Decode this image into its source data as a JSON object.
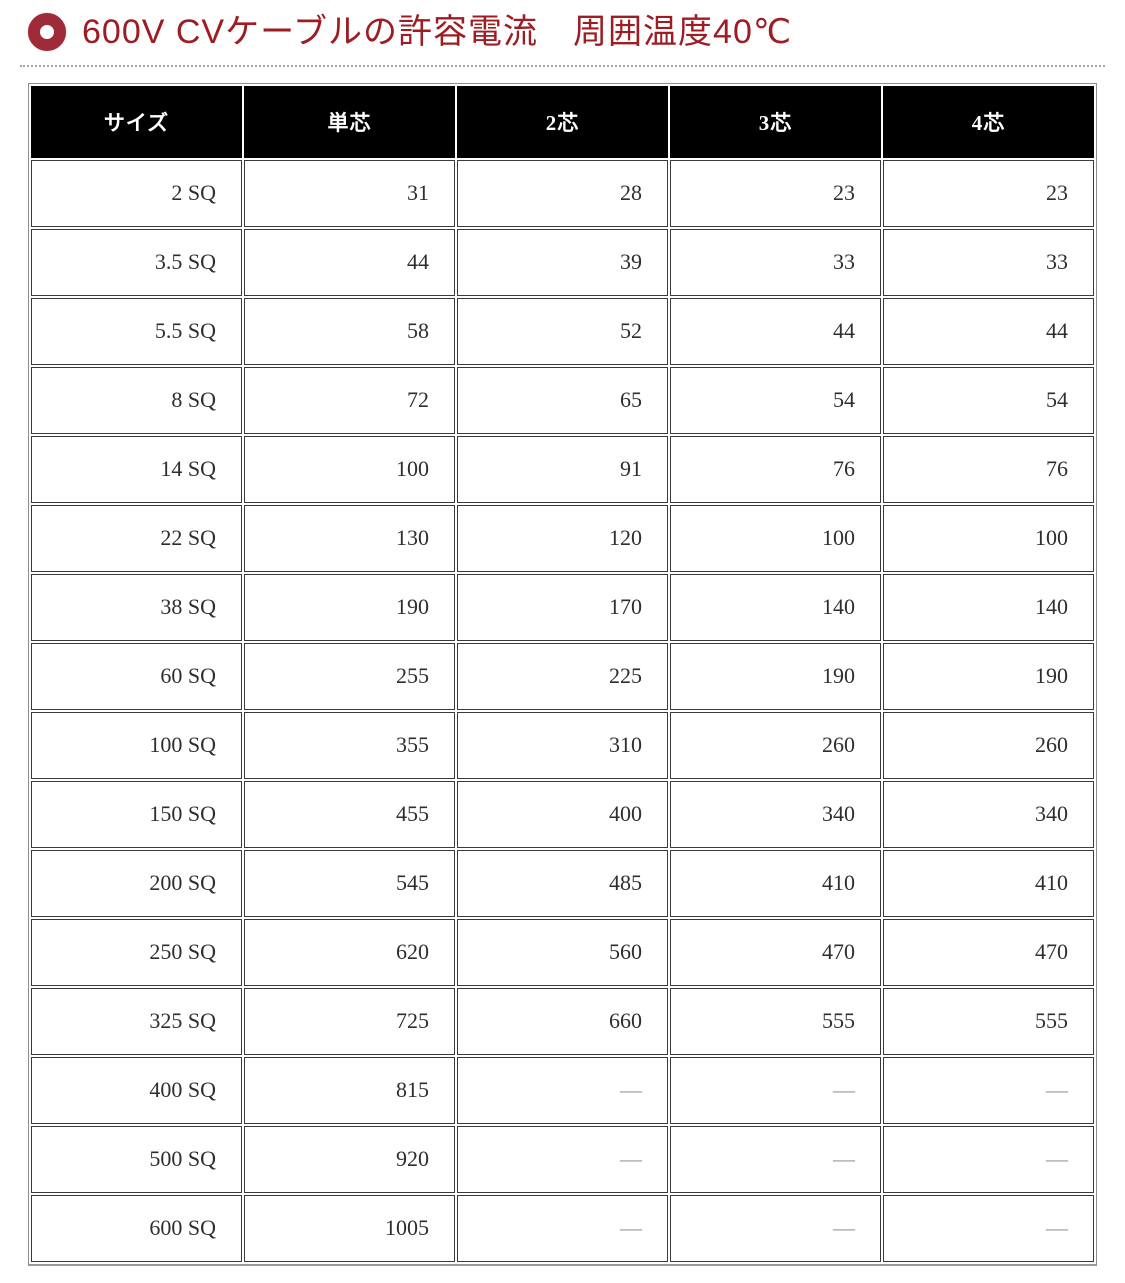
{
  "page": {
    "title": "600V CVケーブルの許容電流　周囲温度40℃"
  },
  "colors": {
    "title_red": "#9d1d23",
    "bullet_red": "#a02b38",
    "header_bg": "#000000",
    "header_text": "#ffffff",
    "cell_text": "#2e2e2e",
    "dash_text": "#999999",
    "cell_border": "#3a3a3a",
    "table_outer_border": "#8e8e8e"
  },
  "table": {
    "columns": [
      "サイズ",
      "単芯",
      "2芯",
      "3芯",
      "4芯"
    ],
    "empty_marker": "—",
    "rows": [
      {
        "size": "2 SQ",
        "values": [
          "31",
          "28",
          "23",
          "23"
        ]
      },
      {
        "size": "3.5 SQ",
        "values": [
          "44",
          "39",
          "33",
          "33"
        ]
      },
      {
        "size": "5.5 SQ",
        "values": [
          "58",
          "52",
          "44",
          "44"
        ]
      },
      {
        "size": "8 SQ",
        "values": [
          "72",
          "65",
          "54",
          "54"
        ]
      },
      {
        "size": "14 SQ",
        "values": [
          "100",
          "91",
          "76",
          "76"
        ]
      },
      {
        "size": "22 SQ",
        "values": [
          "130",
          "120",
          "100",
          "100"
        ]
      },
      {
        "size": "38 SQ",
        "values": [
          "190",
          "170",
          "140",
          "140"
        ]
      },
      {
        "size": "60 SQ",
        "values": [
          "255",
          "225",
          "190",
          "190"
        ]
      },
      {
        "size": "100 SQ",
        "values": [
          "355",
          "310",
          "260",
          "260"
        ]
      },
      {
        "size": "150 SQ",
        "values": [
          "455",
          "400",
          "340",
          "340"
        ]
      },
      {
        "size": "200 SQ",
        "values": [
          "545",
          "485",
          "410",
          "410"
        ]
      },
      {
        "size": "250 SQ",
        "values": [
          "620",
          "560",
          "470",
          "470"
        ]
      },
      {
        "size": "325 SQ",
        "values": [
          "725",
          "660",
          "555",
          "555"
        ]
      },
      {
        "size": "400 SQ",
        "values": [
          "815",
          "—",
          "—",
          "—"
        ]
      },
      {
        "size": "500 SQ",
        "values": [
          "920",
          "—",
          "—",
          "—"
        ]
      },
      {
        "size": "600 SQ",
        "values": [
          "1005",
          "—",
          "—",
          "—"
        ]
      }
    ]
  }
}
